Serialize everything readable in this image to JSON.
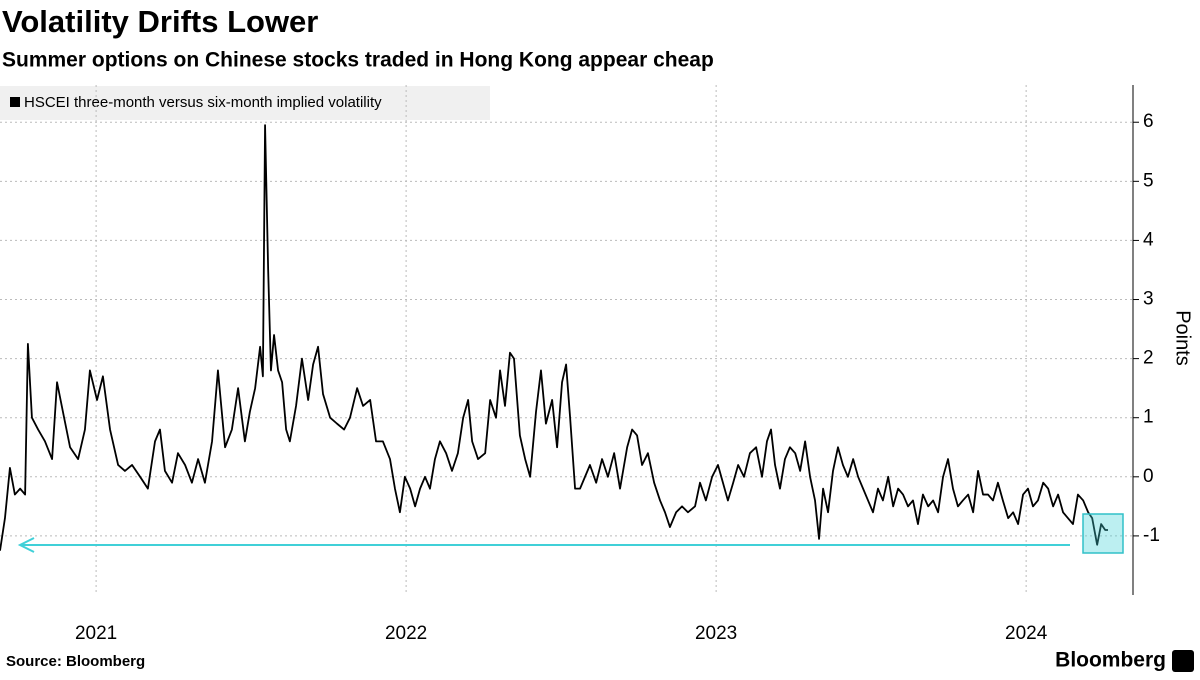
{
  "chart_data": {
    "type": "line",
    "title": "Volatility Drifts Lower",
    "subtitle": "Summer options on Chinese stocks traded in Hong Kong appear cheap",
    "y_label": "Points",
    "source": "Source: Bloomberg",
    "brand": "Bloomberg",
    "legend": "top-left",
    "grid": true,
    "xlim": [
      2020.69,
      2024.335
    ],
    "xticks": [
      2021,
      2022,
      2023,
      2024
    ],
    "ylim": [
      -2,
      6.63
    ],
    "yticks": [
      -1,
      0,
      1,
      2,
      3,
      4,
      5,
      6
    ],
    "x": [
      2020.69,
      2020.706,
      2020.722,
      2020.738,
      2020.755,
      2020.771,
      2020.78,
      2020.793,
      2020.813,
      2020.835,
      2020.858,
      2020.874,
      2020.893,
      2020.916,
      2020.942,
      2020.964,
      2020.98,
      2021.003,
      2021.022,
      2021.045,
      2021.071,
      2021.093,
      2021.116,
      2021.142,
      2021.167,
      2021.19,
      2021.206,
      2021.222,
      2021.245,
      2021.264,
      2021.287,
      2021.309,
      2021.329,
      2021.351,
      2021.374,
      2021.393,
      2021.416,
      2021.438,
      2021.458,
      2021.48,
      2021.496,
      2021.513,
      2021.529,
      2021.538,
      2021.545,
      2021.555,
      2021.564,
      2021.574,
      2021.587,
      2021.6,
      2021.613,
      2021.625,
      2021.645,
      2021.664,
      2021.684,
      2021.7,
      2021.716,
      2021.732,
      2021.755,
      2021.777,
      2021.8,
      2021.819,
      2021.842,
      2021.861,
      2021.884,
      2021.903,
      2021.925,
      2021.948,
      2021.964,
      2021.98,
      2021.996,
      2022.013,
      2022.029,
      2022.045,
      2022.061,
      2022.077,
      2022.093,
      2022.109,
      2022.129,
      2022.148,
      2022.167,
      2022.184,
      2022.2,
      2022.213,
      2022.232,
      2022.255,
      2022.271,
      2022.29,
      2022.303,
      2022.319,
      2022.335,
      2022.348,
      2022.367,
      2022.384,
      2022.4,
      2022.419,
      2022.435,
      2022.451,
      2022.471,
      2022.487,
      2022.503,
      2022.516,
      2022.529,
      2022.545,
      2022.561,
      2022.593,
      2022.613,
      2022.632,
      2022.651,
      2022.671,
      2022.69,
      2022.713,
      2022.729,
      2022.745,
      2022.761,
      2022.78,
      2022.8,
      2022.819,
      2022.835,
      2022.851,
      2022.871,
      2022.89,
      2022.909,
      2022.932,
      2022.948,
      2022.967,
      2022.987,
      2023.006,
      2023.022,
      2023.038,
      2023.055,
      2023.071,
      2023.09,
      2023.109,
      2023.129,
      2023.148,
      2023.164,
      2023.177,
      2023.19,
      2023.206,
      2023.222,
      2023.238,
      2023.255,
      2023.271,
      2023.287,
      2023.303,
      2023.319,
      2023.332,
      2023.345,
      2023.361,
      2023.377,
      2023.393,
      2023.409,
      2023.425,
      2023.442,
      2023.458,
      2023.474,
      2023.49,
      2023.506,
      2023.522,
      2023.538,
      2023.555,
      2023.571,
      2023.587,
      2023.603,
      2023.619,
      2023.635,
      2023.651,
      2023.667,
      2023.684,
      2023.7,
      2023.716,
      2023.732,
      2023.748,
      2023.764,
      2023.78,
      2023.796,
      2023.813,
      2023.829,
      2023.845,
      2023.861,
      2023.877,
      2023.893,
      2023.909,
      2023.925,
      2023.942,
      2023.958,
      2023.974,
      2023.99,
      2024.006,
      2024.022,
      2024.038,
      2024.055,
      2024.071,
      2024.087,
      2024.103,
      2024.119,
      2024.135,
      2024.151,
      2024.167,
      2024.184,
      2024.2,
      2024.213,
      2024.229,
      2024.242,
      2024.255,
      2024.264
    ],
    "series": [
      {
        "name": "HSCEI three-month versus six-month implied volatility",
        "color": "#000000",
        "values": [
          -1.25,
          -0.7,
          0.15,
          -0.3,
          -0.2,
          -0.3,
          2.25,
          1.0,
          0.8,
          0.6,
          0.3,
          1.6,
          1.1,
          0.5,
          0.3,
          0.8,
          1.8,
          1.3,
          1.7,
          0.8,
          0.2,
          0.1,
          0.2,
          0.0,
          -0.2,
          0.6,
          0.8,
          0.1,
          -0.1,
          0.4,
          0.2,
          -0.1,
          0.3,
          -0.1,
          0.6,
          1.8,
          0.5,
          0.8,
          1.5,
          0.6,
          1.1,
          1.5,
          2.2,
          1.7,
          5.95,
          3.5,
          1.8,
          2.4,
          1.8,
          1.6,
          0.8,
          0.6,
          1.2,
          2.0,
          1.3,
          1.9,
          2.2,
          1.4,
          1.0,
          0.9,
          0.8,
          1.0,
          1.5,
          1.2,
          1.3,
          0.6,
          0.6,
          0.3,
          -0.2,
          -0.6,
          0.0,
          -0.2,
          -0.5,
          -0.2,
          0.0,
          -0.2,
          0.3,
          0.6,
          0.4,
          0.1,
          0.4,
          1.0,
          1.3,
          0.6,
          0.3,
          0.4,
          1.3,
          1.0,
          1.8,
          1.2,
          2.1,
          2.0,
          0.7,
          0.3,
          0.0,
          1.1,
          1.8,
          0.9,
          1.3,
          0.5,
          1.6,
          1.9,
          1.0,
          -0.2,
          -0.2,
          0.2,
          -0.1,
          0.3,
          0.0,
          0.4,
          -0.2,
          0.5,
          0.8,
          0.7,
          0.2,
          0.4,
          -0.1,
          -0.4,
          -0.6,
          -0.85,
          -0.6,
          -0.5,
          -0.6,
          -0.5,
          -0.1,
          -0.4,
          0.0,
          0.2,
          -0.1,
          -0.4,
          -0.1,
          0.2,
          0.0,
          0.4,
          0.5,
          0.0,
          0.6,
          0.8,
          0.2,
          -0.2,
          0.3,
          0.5,
          0.4,
          0.1,
          0.6,
          0.0,
          -0.4,
          -1.05,
          -0.2,
          -0.6,
          0.1,
          0.5,
          0.2,
          0.0,
          0.3,
          0.0,
          -0.2,
          -0.4,
          -0.6,
          -0.2,
          -0.4,
          0.0,
          -0.5,
          -0.2,
          -0.3,
          -0.5,
          -0.4,
          -0.8,
          -0.3,
          -0.5,
          -0.4,
          -0.6,
          0.0,
          0.3,
          -0.2,
          -0.5,
          -0.4,
          -0.3,
          -0.6,
          0.1,
          -0.3,
          -0.3,
          -0.4,
          -0.1,
          -0.4,
          -0.7,
          -0.6,
          -0.8,
          -0.3,
          -0.2,
          -0.5,
          -0.4,
          -0.1,
          -0.2,
          -0.5,
          -0.3,
          -0.6,
          -0.7,
          -0.8,
          -0.3,
          -0.4,
          -0.6,
          -0.7,
          -1.15,
          -0.8,
          -0.9,
          -0.9
        ]
      }
    ]
  }
}
